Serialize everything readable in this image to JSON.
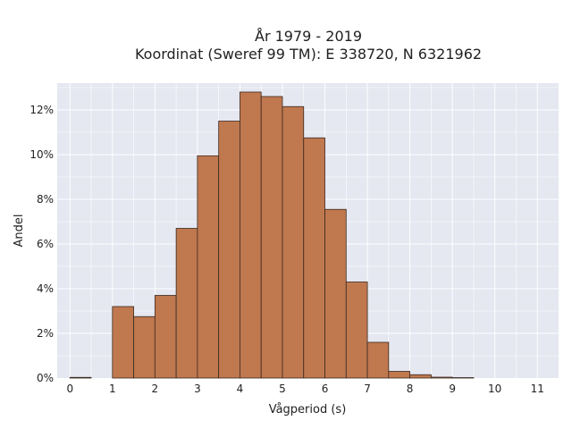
{
  "chart_data": {
    "type": "bar",
    "title": "År 1979 - 2019",
    "subtitle": "Koordinat (Sweref 99 TM): E 338720, N 6321962",
    "xlabel": "Vågperiod (s)",
    "ylabel": "Andel",
    "xlim": [
      -0.3,
      11.5
    ],
    "ylim": [
      0,
      13.2
    ],
    "x_ticks": [
      0,
      1,
      2,
      3,
      4,
      5,
      6,
      7,
      8,
      9,
      10,
      11
    ],
    "y_ticks": [
      0,
      2,
      4,
      6,
      8,
      10,
      12
    ],
    "y_tick_labels": [
      "0%",
      "2%",
      "4%",
      "6%",
      "8%",
      "10%",
      "12%"
    ],
    "grid": true,
    "bin_width": 0.5,
    "bin_starts": [
      0,
      0.5,
      1,
      1.5,
      2,
      2.5,
      3,
      3.5,
      4,
      4.5,
      5,
      5.5,
      6,
      6.5,
      7,
      7.5,
      8,
      8.5,
      9,
      9.5,
      10,
      10.5
    ],
    "values": [
      0.03,
      0,
      3.2,
      2.75,
      3.7,
      6.7,
      9.95,
      11.5,
      12.8,
      12.6,
      12.15,
      10.75,
      7.55,
      4.3,
      1.6,
      0.3,
      0.15,
      0.04,
      0.02,
      0,
      0,
      0
    ],
    "colors": {
      "bar": "#c0784f",
      "edge": "#3a2a20",
      "background": "#e5e7f1",
      "grid": "#ffffff"
    }
  }
}
